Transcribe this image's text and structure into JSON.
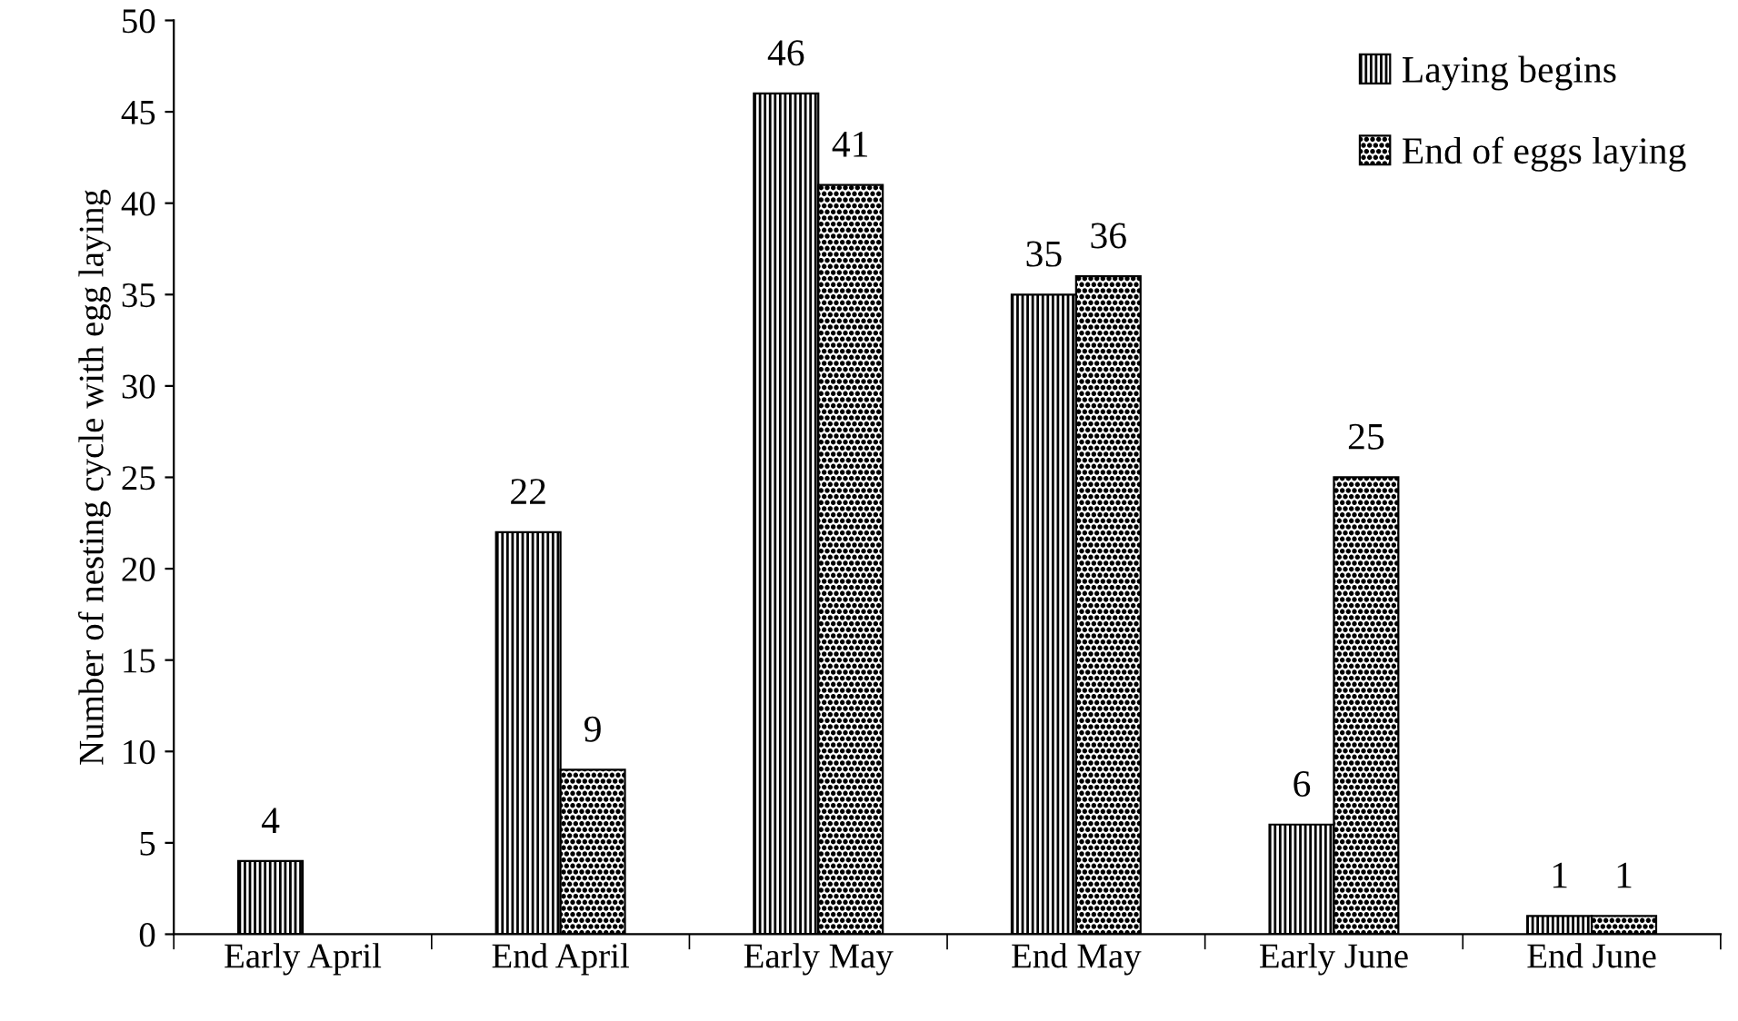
{
  "chart_data": {
    "type": "bar",
    "ylabel": "Number of nesting cycle with egg laying",
    "categories": [
      "Early April",
      "End April",
      "Early May",
      "End May",
      "Early June",
      "End June"
    ],
    "series": [
      {
        "name": "Laying begins",
        "color": "#000000",
        "values": [
          4,
          22,
          46,
          35,
          6,
          1
        ]
      },
      {
        "name": "End of eggs laying",
        "color": "#000000",
        "values": [
          null,
          9,
          41,
          36,
          25,
          1
        ]
      }
    ],
    "ylim": [
      0,
      50
    ],
    "yticks": [
      0,
      5,
      10,
      15,
      20,
      25,
      30,
      35,
      40,
      45,
      50
    ],
    "grid": false,
    "legend": "top right",
    "data_labels": true
  }
}
